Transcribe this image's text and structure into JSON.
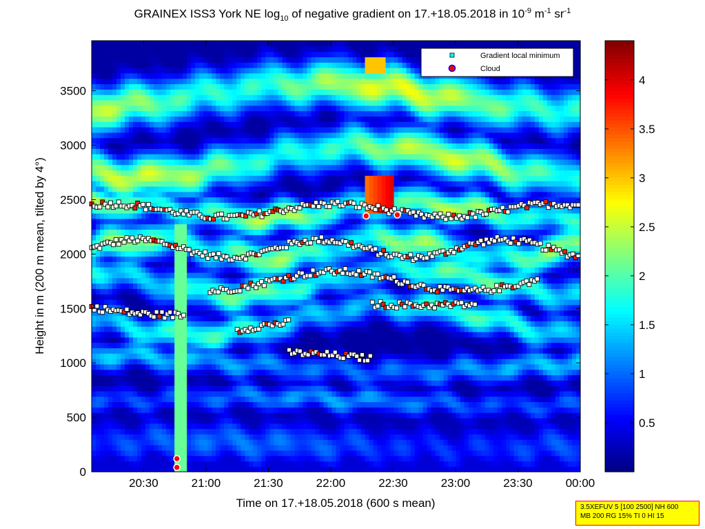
{
  "title": {
    "prefix": "GRAINEX ISS3 York NE log",
    "sub": "10",
    "middle": " of negative gradient on 17.+18.05.2018 in 10",
    "sup1": "-9",
    "m_unit": " m",
    "sup2": "-1",
    "sr_unit": " sr",
    "sup3": "-1"
  },
  "chart_data": {
    "type": "heatmap",
    "xlabel": "Time on 17.+18.05.2018 (600 s mean)",
    "ylabel": "Height in m (200 m mean, tilted by 4°)",
    "x_ticks": [
      "20:30",
      "21:00",
      "21:30",
      "22:00",
      "22:30",
      "23:00",
      "23:30",
      "00:00"
    ],
    "x_tick_minutes": [
      1230,
      1260,
      1290,
      1320,
      1350,
      1380,
      1410,
      1440
    ],
    "xlim_minutes": [
      1205,
      1440
    ],
    "y_ticks": [
      0,
      500,
      1000,
      1500,
      2000,
      2500,
      3000,
      3500
    ],
    "ylim": [
      0,
      3960
    ],
    "colorbar": {
      "ticks": [
        0.5,
        1,
        1.5,
        2,
        2.5,
        3,
        3.5,
        4
      ],
      "range": [
        0,
        4.4
      ],
      "colormap": "jet"
    },
    "legend": {
      "placement": "top-right",
      "entries": [
        "Gradient local minimum",
        "Cloud"
      ]
    },
    "layers": [
      {
        "base": 2050,
        "amp": 90,
        "level": 2.3,
        "width": 170
      },
      {
        "base": 2400,
        "amp": 70,
        "level": 2.4,
        "width": 150
      },
      {
        "base": 1750,
        "amp": 120,
        "level": 2.1,
        "width": 160
      },
      {
        "base": 1400,
        "amp": 140,
        "level": 1.9,
        "width": 150
      },
      {
        "base": 2850,
        "amp": 140,
        "level": 2.5,
        "width": 200
      },
      {
        "base": 3450,
        "amp": 120,
        "level": 2.6,
        "width": 220
      },
      {
        "base": 650,
        "amp": 40,
        "level": 1.2,
        "width": 120
      },
      {
        "base": 250,
        "amp": 30,
        "level": 1.0,
        "width": 200
      },
      {
        "base": 1000,
        "amp": 80,
        "level": 1.4,
        "width": 130
      }
    ],
    "minima_tracks": [
      {
        "base": 2050,
        "amp": 80,
        "start": 1205,
        "end": 1440
      },
      {
        "base": 2400,
        "amp": 60,
        "start": 1205,
        "end": 1440
      },
      {
        "base": 1750,
        "amp": 90,
        "start": 1262,
        "end": 1420
      },
      {
        "base": 1500,
        "amp": 60,
        "start": 1205,
        "end": 1250
      },
      {
        "base": 1250,
        "amp": 120,
        "start": 1275,
        "end": 1300
      },
      {
        "base": 1050,
        "amp": 50,
        "start": 1300,
        "end": 1340
      },
      {
        "base": 1560,
        "amp": 30,
        "start": 1340,
        "end": 1390
      }
    ],
    "clouds": [
      {
        "t": 1246,
        "h": 120
      },
      {
        "t": 1246,
        "h": 40
      },
      {
        "t": 1337,
        "h": 2350
      },
      {
        "t": 1352,
        "h": 2360
      }
    ]
  },
  "infobox": {
    "line1": "3.5XEFUV 5 [100 2500] NH 600",
    "line2": "MB 200 RG 15% TI 0 HI 15"
  }
}
